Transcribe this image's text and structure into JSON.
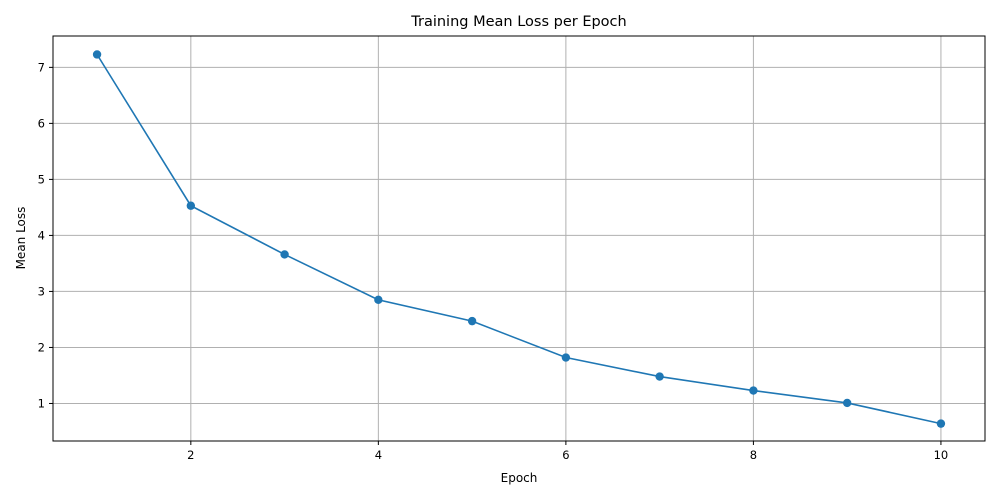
{
  "chart_data": {
    "type": "line",
    "title": "Training Mean Loss per Epoch",
    "xlabel": "Epoch",
    "ylabel": "Mean Loss",
    "xlim": [
      0.53,
      10.47
    ],
    "ylim": [
      0.33,
      7.56
    ],
    "xticks": [
      2,
      4,
      6,
      8,
      10
    ],
    "yticks": [
      1,
      2,
      3,
      4,
      5,
      6,
      7
    ],
    "grid": true,
    "color": "#1f77b4",
    "marker": "circle",
    "x": [
      1,
      2,
      3,
      4,
      5,
      6,
      7,
      8,
      9,
      10
    ],
    "series": [
      {
        "values": [
          7.23,
          4.53,
          3.66,
          2.85,
          2.47,
          1.82,
          1.48,
          1.23,
          1.01,
          0.64
        ]
      }
    ]
  }
}
